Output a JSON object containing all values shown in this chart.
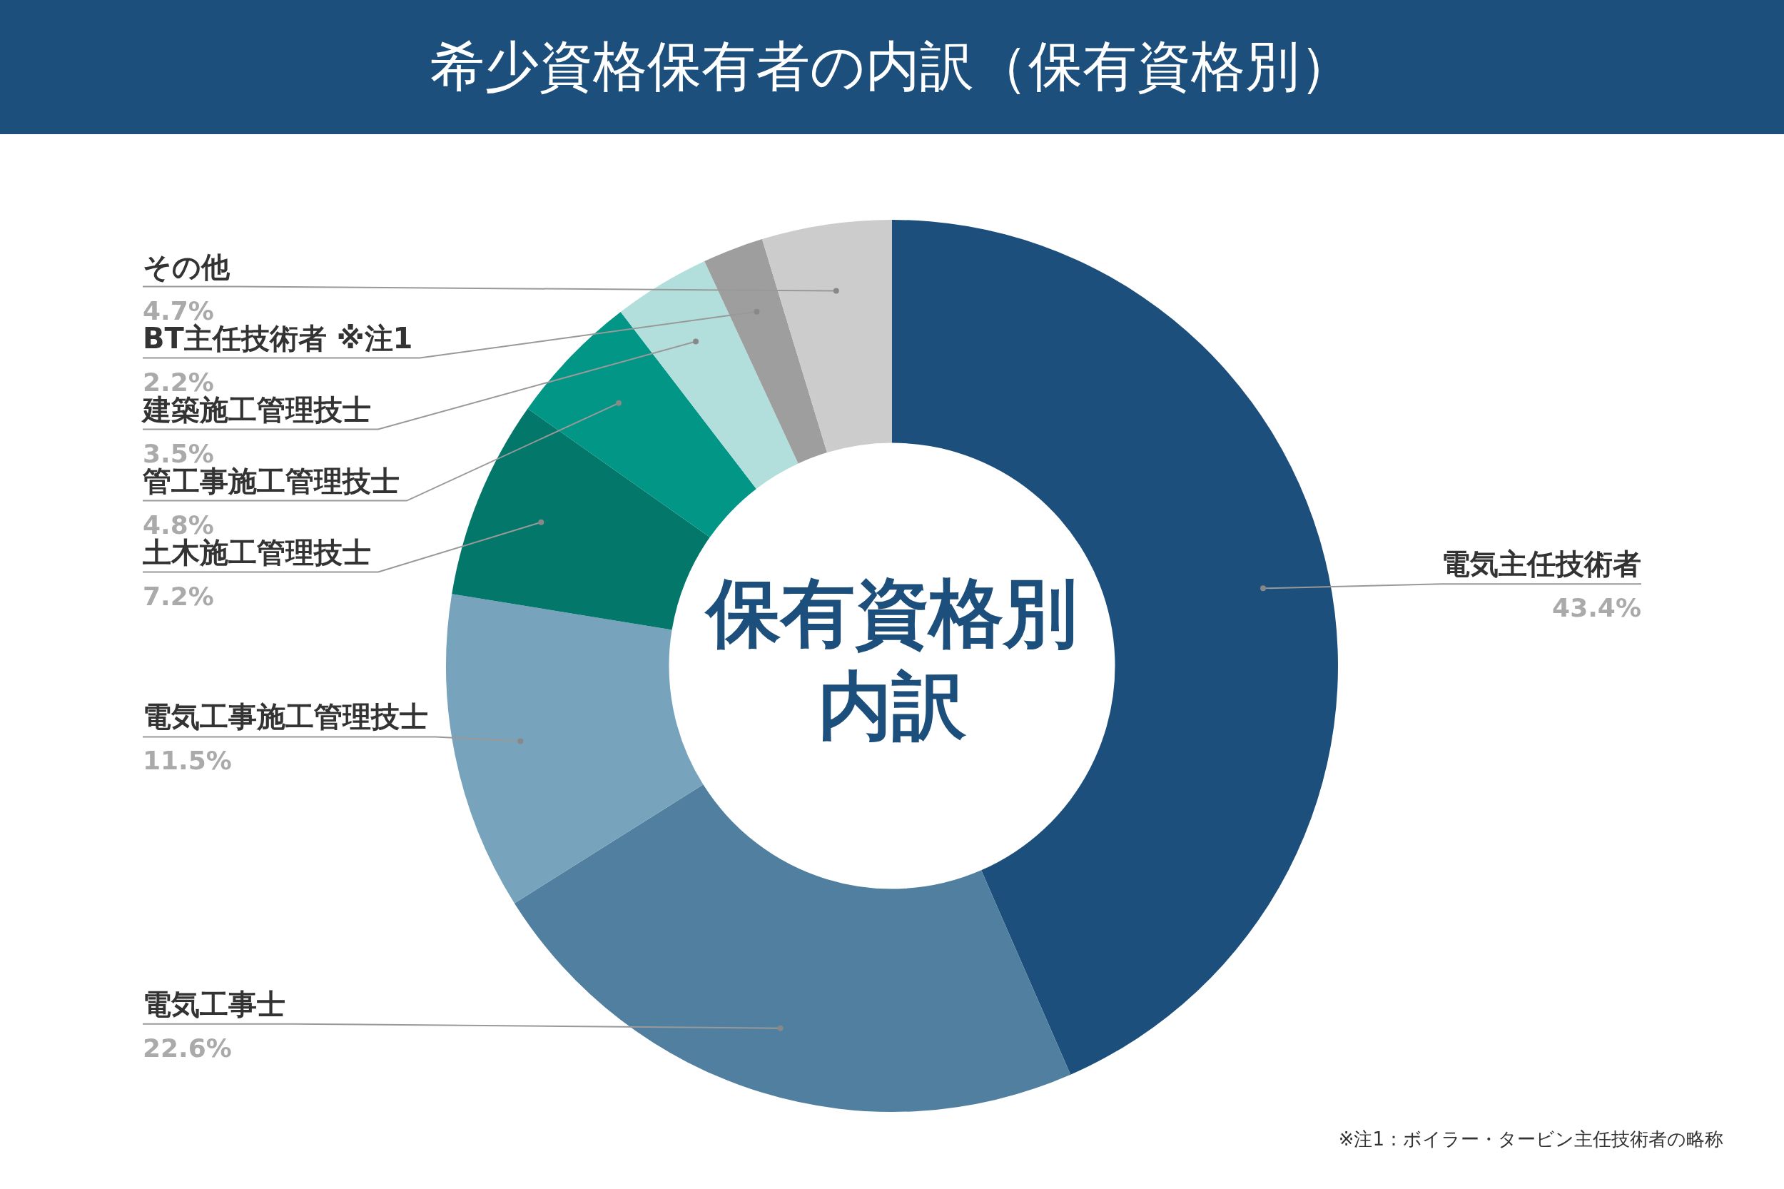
{
  "chart_data": {
    "type": "donut",
    "title": "希少資格保有者の内訳（保有資格別）",
    "categories": [
      "電気主任技術者",
      "電気工事士",
      "電気工事施工管理技士",
      "土木施工管理技士",
      "管工事施工管理技士",
      "建築施工管理技士",
      "BT主任技術者 ※注1",
      "その他"
    ],
    "values": [
      43.4,
      22.6,
      11.5,
      7.2,
      4.8,
      3.5,
      2.2,
      4.7
    ],
    "colors": [
      "#1d4f7c",
      "#517f9f",
      "#78a3bc",
      "#02776a",
      "#029686",
      "#b2dfdb",
      "#9e9e9e",
      "#cccccc"
    ],
    "value_labels": [
      "43.4%",
      "22.6%",
      "11.5%",
      "7.2%",
      "4.8%",
      "3.5%",
      "2.2%",
      "4.7%"
    ],
    "annotations": [
      "保有資格別",
      "内訳",
      "※注1：ボイラー・タービン主任技術者の略称"
    ]
  }
}
